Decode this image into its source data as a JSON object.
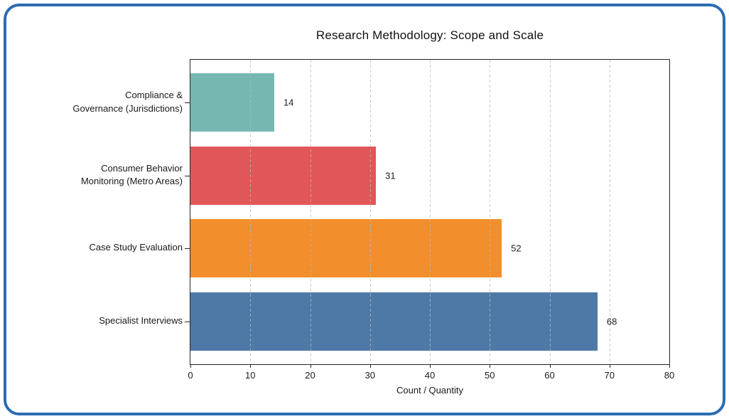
{
  "card": {
    "background_color": "#ffffff",
    "border_color": "#2b6cb2"
  },
  "chart_data": {
    "type": "bar",
    "orientation": "horizontal",
    "title": "Research Methodology: Scope and Scale",
    "xlabel": "Count / Quantity",
    "ylabel": "",
    "categories": [
      "Compliance &\nGovernance (Jurisdictions)",
      "Consumer Behavior\nMonitoring (Metro Areas)",
      "Case Study Evaluation",
      "Specialist Interviews"
    ],
    "values": [
      14,
      31,
      52,
      68
    ],
    "value_labels": [
      "14",
      "31",
      "52",
      "68"
    ],
    "bar_colors": [
      "#76b7b2",
      "#e15759",
      "#f28e2b",
      "#4e79a7"
    ],
    "xlim": [
      0,
      80
    ],
    "xticks": [
      0,
      10,
      20,
      30,
      40,
      50,
      60,
      70,
      80
    ],
    "grid": "x-axis dashed, drawn over bars",
    "legend": "none"
  }
}
